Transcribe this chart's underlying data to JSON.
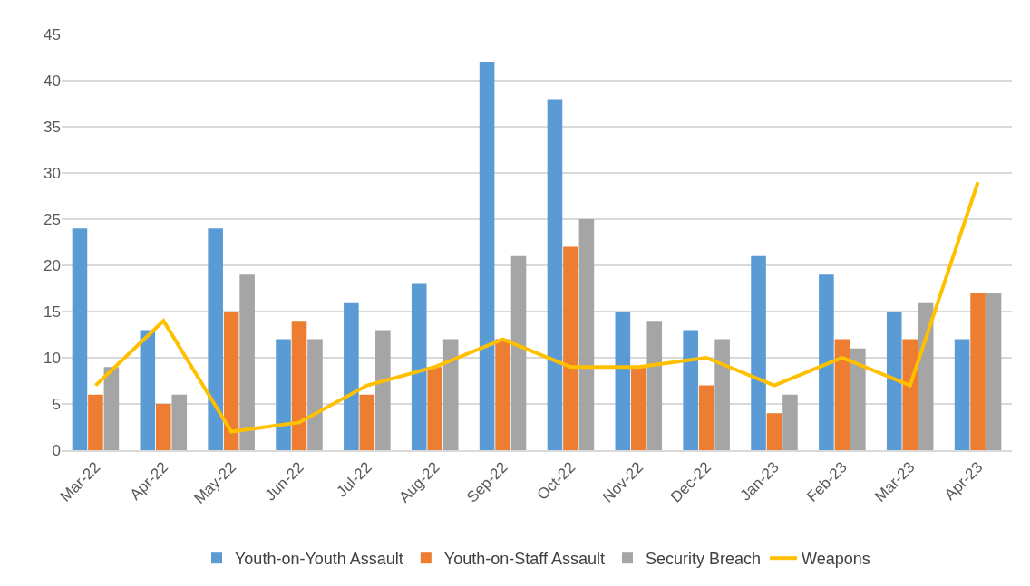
{
  "chart_data": {
    "type": "bar",
    "categories": [
      "Mar-22",
      "Apr-22",
      "May-22",
      "Jun-22",
      "Jul-22",
      "Aug-22",
      "Sep-22",
      "Oct-22",
      "Nov-22",
      "Dec-22",
      "Jan-23",
      "Feb-23",
      "Mar-23",
      "Apr-23"
    ],
    "series": [
      {
        "name": "Youth-on-Youth Assault",
        "color": "#5b9bd5",
        "values": [
          24,
          13,
          24,
          12,
          16,
          18,
          42,
          38,
          15,
          13,
          21,
          19,
          15,
          12
        ]
      },
      {
        "name": "Youth-on-Staff Assault",
        "color": "#ed7d31",
        "values": [
          6,
          5,
          15,
          14,
          6,
          9,
          12,
          22,
          9,
          7,
          4,
          12,
          12,
          17
        ]
      },
      {
        "name": "Security Breach",
        "color": "#a5a5a5",
        "values": [
          9,
          6,
          19,
          12,
          13,
          12,
          21,
          25,
          14,
          12,
          6,
          11,
          16,
          17
        ]
      },
      {
        "name": "Weapons",
        "type": "line",
        "color": "#ffc000",
        "values": [
          7,
          14,
          2,
          3,
          7,
          9,
          12,
          9,
          9,
          10,
          7,
          10,
          7,
          29
        ]
      }
    ],
    "ylim": [
      0,
      45
    ],
    "yticks": [
      0,
      5,
      10,
      15,
      20,
      25,
      30,
      35,
      40,
      45
    ],
    "grid": "y",
    "legend": "bottom",
    "marker": "none",
    "line_style": "solid"
  }
}
